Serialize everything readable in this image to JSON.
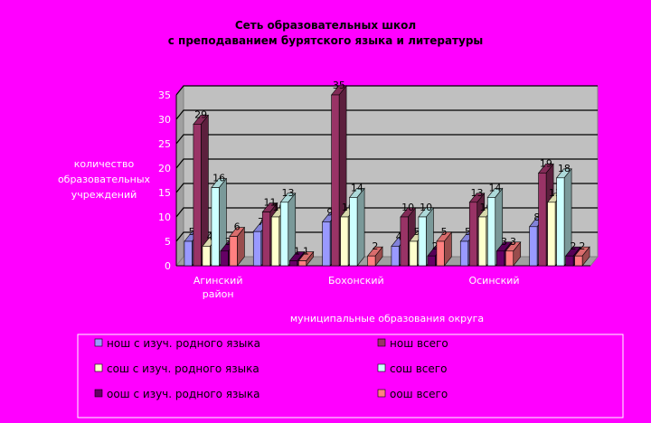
{
  "chart_data": {
    "type": "bar",
    "title_lines": [
      "Сеть образовательных школ",
      "с преподаванием бурятского языка и литературы"
    ],
    "ylabel_lines": [
      "количество",
      "образовательных",
      "учреждений"
    ],
    "xlabel": "муниципальные образования округа",
    "ylim": [
      0,
      35
    ],
    "yticks": [
      0,
      5,
      10,
      15,
      20,
      25,
      30,
      35
    ],
    "groups": [
      {
        "tick_lines": [
          "Агинский",
          "район"
        ],
        "values": [
          5,
          29,
          4,
          16,
          3,
          6
        ]
      },
      {
        "tick_lines": [
          ""
        ],
        "values": [
          7,
          11,
          10,
          13,
          1,
          1
        ]
      },
      {
        "tick_lines": [
          "Бохонский"
        ],
        "values": [
          9,
          35,
          10,
          14,
          null,
          2
        ]
      },
      {
        "tick_lines": [
          ""
        ],
        "values": [
          4,
          10,
          5,
          10,
          2,
          5
        ]
      },
      {
        "tick_lines": [
          "Осинский"
        ],
        "values": [
          5,
          13,
          10,
          14,
          3,
          3
        ]
      },
      {
        "tick_lines": [
          ""
        ],
        "values": [
          8,
          19,
          13,
          18,
          2,
          2
        ]
      }
    ],
    "series": [
      {
        "name": "нош с изуч. родного языка",
        "color": "#9999FF"
      },
      {
        "name": "нош всего",
        "color": "#993366"
      },
      {
        "name": "сош с изуч. родного языка",
        "color": "#FFFFCC"
      },
      {
        "name": "сош всего",
        "color": "#CCFFFF"
      },
      {
        "name": "оош с изуч. родного языка",
        "color": "#660066"
      },
      {
        "name": "оош всего",
        "color": "#FF8080"
      }
    ],
    "grid": true,
    "plot_background": "#C0C0C0"
  }
}
